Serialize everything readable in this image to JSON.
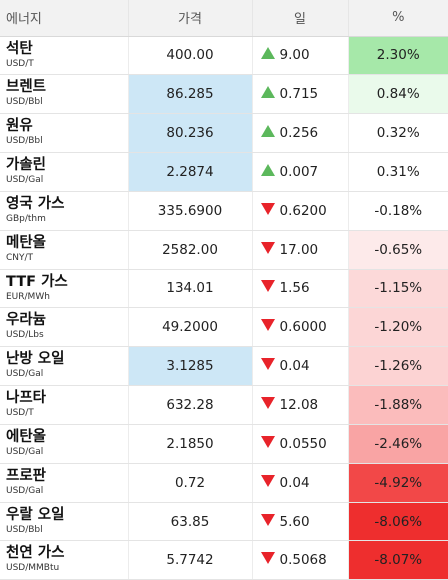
{
  "header": {
    "name": "에너지",
    "price": "가격",
    "change": "일",
    "pct": "%"
  },
  "colors": {
    "up": "#5cb85c",
    "down": "#e8232a",
    "highlight": "#cde7f6"
  },
  "rows": [
    {
      "name": "석탄",
      "unit": "USD/T",
      "price": "400.00",
      "dir": "up",
      "change": "9.00",
      "pct": "2.30%",
      "pct_bg": "#a6e8a9",
      "hl": false
    },
    {
      "name": "브렌트",
      "unit": "USD/Bbl",
      "price": "86.285",
      "dir": "up",
      "change": "0.715",
      "pct": "0.84%",
      "pct_bg": "#eafaeb",
      "hl": true
    },
    {
      "name": "원유",
      "unit": "USD/Bbl",
      "price": "80.236",
      "dir": "up",
      "change": "0.256",
      "pct": "0.32%",
      "pct_bg": "#ffffff",
      "hl": true
    },
    {
      "name": "가솔린",
      "unit": "USD/Gal",
      "price": "2.2874",
      "dir": "up",
      "change": "0.007",
      "pct": "0.31%",
      "pct_bg": "#ffffff",
      "hl": true
    },
    {
      "name": "영국 가스",
      "unit": "GBp/thm",
      "price": "335.6900",
      "dir": "down",
      "change": "0.6200",
      "pct": "-0.18%",
      "pct_bg": "#ffffff",
      "hl": false
    },
    {
      "name": "메탄올",
      "unit": "CNY/T",
      "price": "2582.00",
      "dir": "down",
      "change": "17.00",
      "pct": "-0.65%",
      "pct_bg": "#fdeaea",
      "hl": false
    },
    {
      "name": "TTF 가스",
      "unit": "EUR/MWh",
      "price": "134.01",
      "dir": "down",
      "change": "1.56",
      "pct": "-1.15%",
      "pct_bg": "#fcd9d9",
      "hl": false
    },
    {
      "name": "우라늄",
      "unit": "USD/Lbs",
      "price": "49.2000",
      "dir": "down",
      "change": "0.6000",
      "pct": "-1.20%",
      "pct_bg": "#fcd6d6",
      "hl": false
    },
    {
      "name": "난방 오일",
      "unit": "USD/Gal",
      "price": "3.1285",
      "dir": "down",
      "change": "0.04",
      "pct": "-1.26%",
      "pct_bg": "#fcd3d3",
      "hl": true
    },
    {
      "name": "나프타",
      "unit": "USD/T",
      "price": "632.28",
      "dir": "down",
      "change": "12.08",
      "pct": "-1.88%",
      "pct_bg": "#fbbcbc",
      "hl": false
    },
    {
      "name": "에탄올",
      "unit": "USD/Gal",
      "price": "2.1850",
      "dir": "down",
      "change": "0.0550",
      "pct": "-2.46%",
      "pct_bg": "#f9a4a4",
      "hl": false
    },
    {
      "name": "프로판",
      "unit": "USD/Gal",
      "price": "0.72",
      "dir": "down",
      "change": "0.04",
      "pct": "-4.92%",
      "pct_bg": "#f24848",
      "hl": false
    },
    {
      "name": "우랄 오일",
      "unit": "USD/Bbl",
      "price": "63.85",
      "dir": "down",
      "change": "5.60",
      "pct": "-8.06%",
      "pct_bg": "#ee2e2e",
      "hl": false
    },
    {
      "name": "천연 가스",
      "unit": "USD/MMBtu",
      "price": "5.7742",
      "dir": "down",
      "change": "0.5068",
      "pct": "-8.07%",
      "pct_bg": "#ee2e2e",
      "hl": false
    }
  ]
}
